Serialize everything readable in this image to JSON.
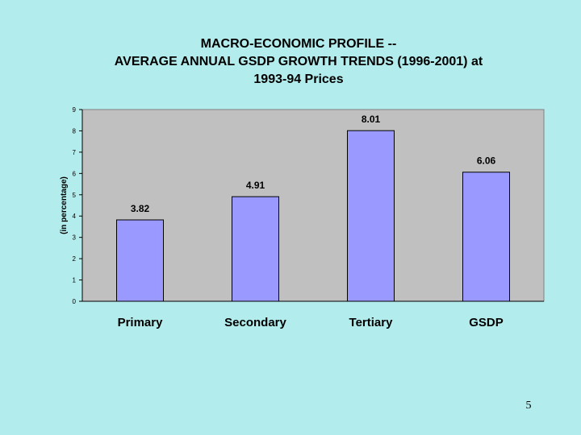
{
  "slide": {
    "title_lines": [
      "MACRO-ECONOMIC PROFILE --",
      "AVERAGE ANNUAL GSDP GROWTH TRENDS (1996-2001) at",
      "1993-94 Prices"
    ],
    "page_number": "5"
  },
  "colors": {
    "background": "#b3ecec",
    "plot_area": "#c0c0c0",
    "bar_fill": "#9999ff",
    "bar_stroke": "#000000"
  },
  "chart_data": {
    "type": "bar",
    "title": "MACRO-ECONOMIC PROFILE -- AVERAGE ANNUAL GSDP GROWTH TRENDS (1996-2001) at 1993-94 Prices",
    "categories": [
      "Primary",
      "Secondary",
      "Tertiary",
      "GSDP"
    ],
    "values": [
      3.82,
      4.91,
      8.01,
      6.06
    ],
    "data_labels": [
      "3.82",
      "4.91",
      "8.01",
      "6.06"
    ],
    "xlabel": "",
    "ylabel": "(in percentage)",
    "ylim": [
      0,
      9
    ],
    "yticks": [
      0,
      1,
      2,
      3,
      4,
      5,
      6,
      7,
      8,
      9
    ],
    "ytick_labels": [
      "0",
      "1",
      "2",
      "3",
      "4",
      "5",
      "6",
      "7",
      "8",
      "9"
    ],
    "grid": false,
    "legend": "none"
  }
}
